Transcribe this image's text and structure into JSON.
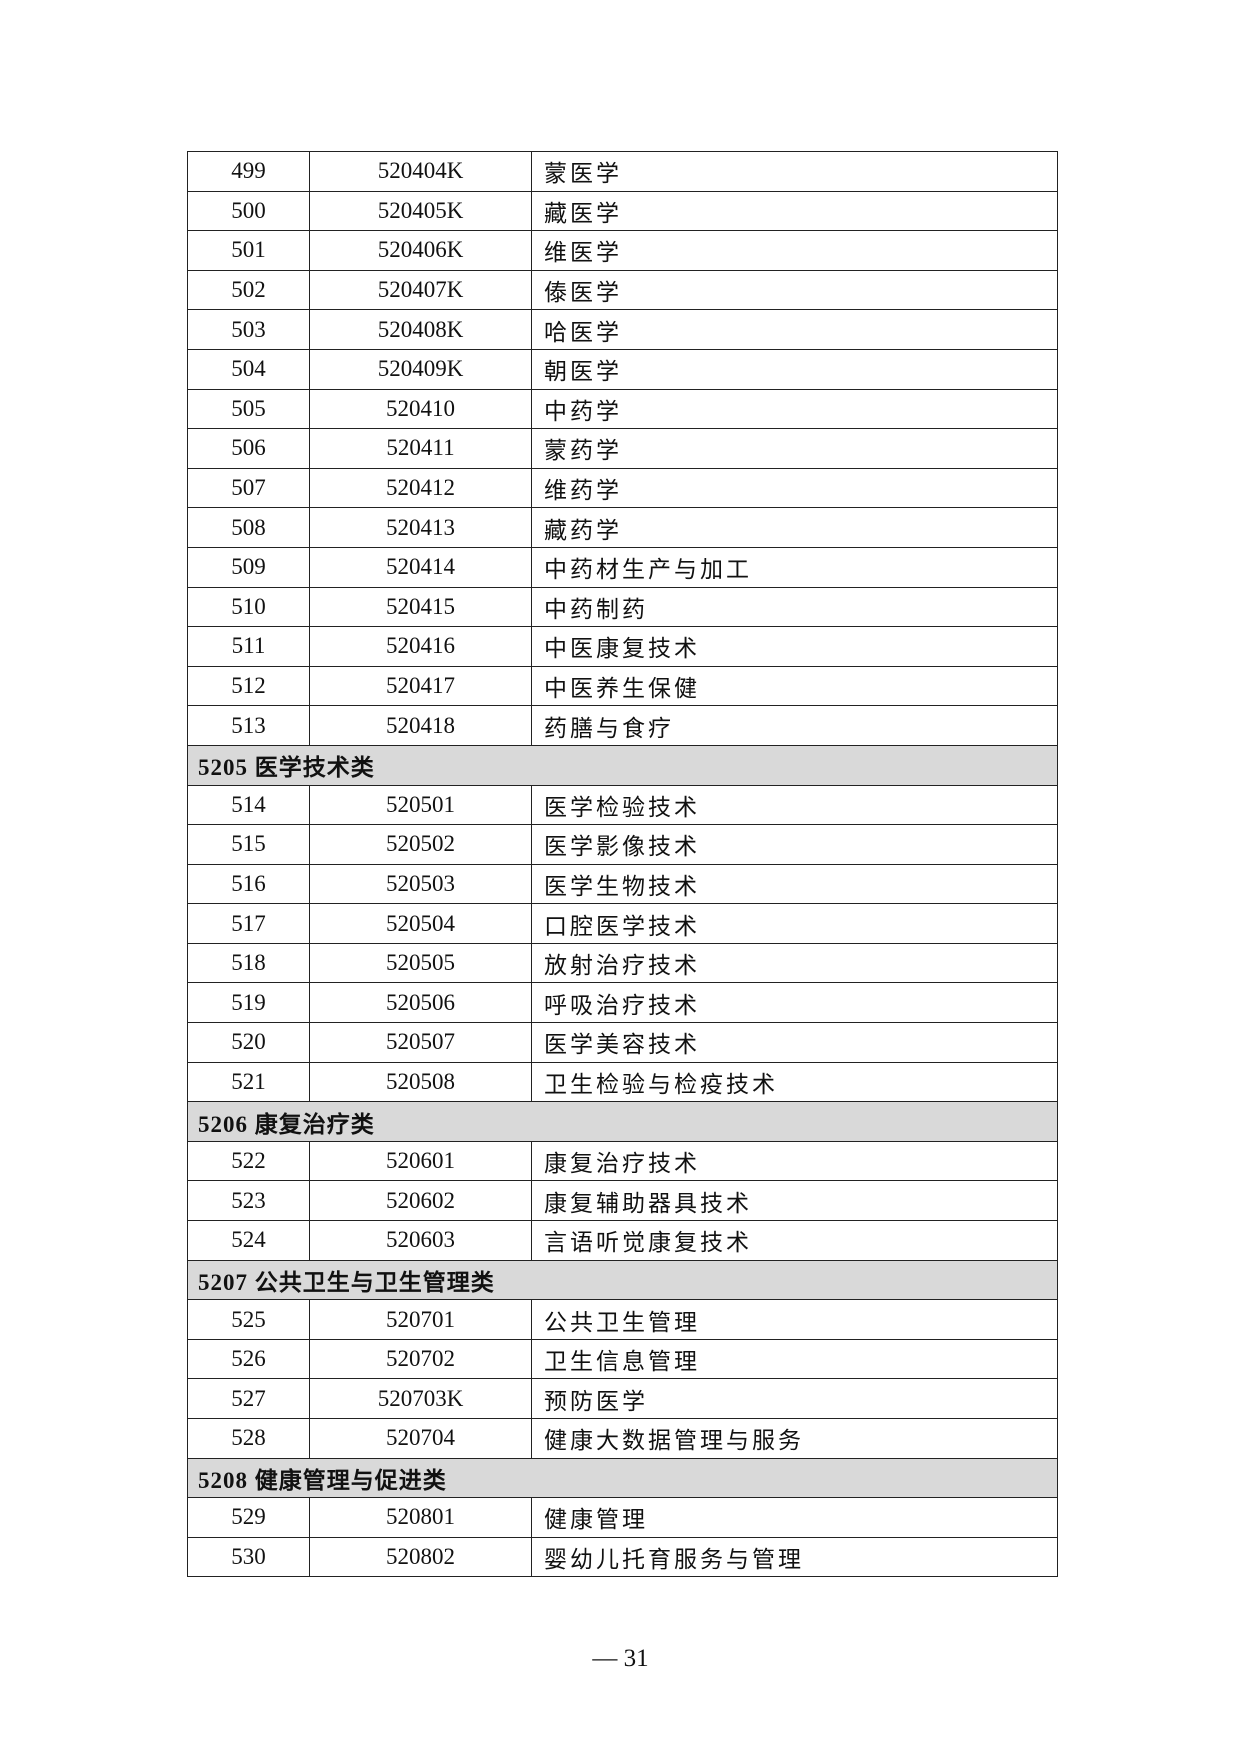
{
  "table": {
    "rows": [
      {
        "type": "row",
        "no": "499",
        "code": "520404K",
        "name": "蒙医学"
      },
      {
        "type": "row",
        "no": "500",
        "code": "520405K",
        "name": "藏医学"
      },
      {
        "type": "row",
        "no": "501",
        "code": "520406K",
        "name": "维医学"
      },
      {
        "type": "row",
        "no": "502",
        "code": "520407K",
        "name": "傣医学"
      },
      {
        "type": "row",
        "no": "503",
        "code": "520408K",
        "name": "哈医学"
      },
      {
        "type": "row",
        "no": "504",
        "code": "520409K",
        "name": "朝医学"
      },
      {
        "type": "row",
        "no": "505",
        "code": "520410",
        "name": "中药学"
      },
      {
        "type": "row",
        "no": "506",
        "code": "520411",
        "name": "蒙药学"
      },
      {
        "type": "row",
        "no": "507",
        "code": "520412",
        "name": "维药学"
      },
      {
        "type": "row",
        "no": "508",
        "code": "520413",
        "name": "藏药学"
      },
      {
        "type": "row",
        "no": "509",
        "code": "520414",
        "name": "中药材生产与加工"
      },
      {
        "type": "row",
        "no": "510",
        "code": "520415",
        "name": "中药制药"
      },
      {
        "type": "row",
        "no": "511",
        "code": "520416",
        "name": "中医康复技术"
      },
      {
        "type": "row",
        "no": "512",
        "code": "520417",
        "name": "中医养生保健"
      },
      {
        "type": "row",
        "no": "513",
        "code": "520418",
        "name": "药膳与食疗"
      },
      {
        "type": "header",
        "title": "5205 医学技术类"
      },
      {
        "type": "row",
        "no": "514",
        "code": "520501",
        "name": "医学检验技术"
      },
      {
        "type": "row",
        "no": "515",
        "code": "520502",
        "name": "医学影像技术"
      },
      {
        "type": "row",
        "no": "516",
        "code": "520503",
        "name": "医学生物技术"
      },
      {
        "type": "row",
        "no": "517",
        "code": "520504",
        "name": "口腔医学技术"
      },
      {
        "type": "row",
        "no": "518",
        "code": "520505",
        "name": "放射治疗技术"
      },
      {
        "type": "row",
        "no": "519",
        "code": "520506",
        "name": "呼吸治疗技术"
      },
      {
        "type": "row",
        "no": "520",
        "code": "520507",
        "name": "医学美容技术"
      },
      {
        "type": "row",
        "no": "521",
        "code": "520508",
        "name": "卫生检验与检疫技术"
      },
      {
        "type": "header",
        "title": "5206 康复治疗类"
      },
      {
        "type": "row",
        "no": "522",
        "code": "520601",
        "name": "康复治疗技术"
      },
      {
        "type": "row",
        "no": "523",
        "code": "520602",
        "name": "康复辅助器具技术"
      },
      {
        "type": "row",
        "no": "524",
        "code": "520603",
        "name": "言语听觉康复技术"
      },
      {
        "type": "header",
        "title": "5207 公共卫生与卫生管理类"
      },
      {
        "type": "row",
        "no": "525",
        "code": "520701",
        "name": "公共卫生管理"
      },
      {
        "type": "row",
        "no": "526",
        "code": "520702",
        "name": "卫生信息管理"
      },
      {
        "type": "row",
        "no": "527",
        "code": "520703K",
        "name": "预防医学"
      },
      {
        "type": "row",
        "no": "528",
        "code": "520704",
        "name": "健康大数据管理与服务"
      },
      {
        "type": "header",
        "title": "5208 健康管理与促进类"
      },
      {
        "type": "row",
        "no": "529",
        "code": "520801",
        "name": "健康管理"
      },
      {
        "type": "row",
        "no": "530",
        "code": "520802",
        "name": "婴幼儿托育服务与管理"
      }
    ]
  },
  "footer": {
    "page_number": "— 31"
  }
}
